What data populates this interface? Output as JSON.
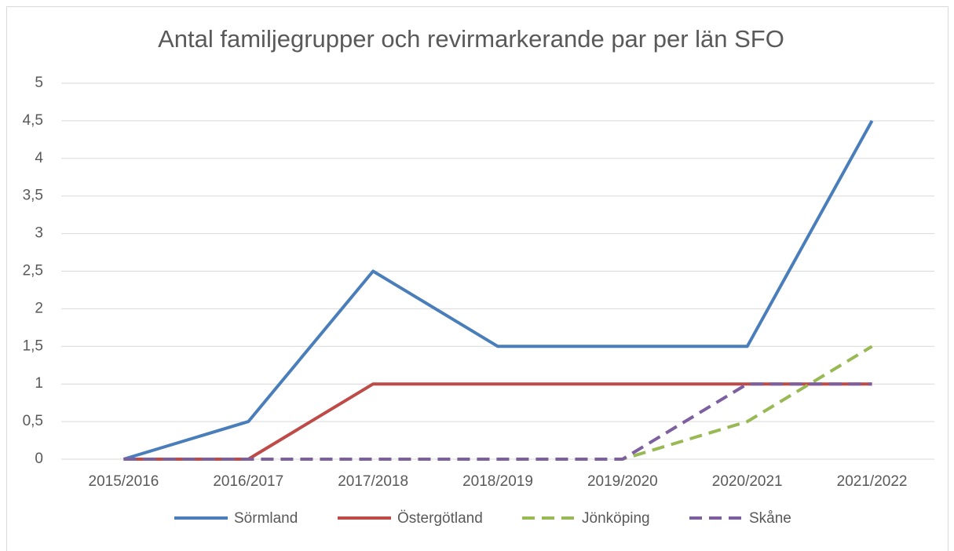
{
  "chart_data": {
    "type": "line",
    "title": "Antal familjegrupper och revirmarkerande par per län SFO",
    "categories": [
      "2015/2016",
      "2016/2017",
      "2017/2018",
      "2018/2019",
      "2019/2020",
      "2020/2021",
      "2021/2022"
    ],
    "series": [
      {
        "name": "Sörmland",
        "color": "#4a7ebb",
        "dashed": false,
        "values": [
          0,
          0.5,
          2.5,
          1.5,
          1.5,
          1.5,
          4.5
        ]
      },
      {
        "name": "Östergötland",
        "color": "#be4b48",
        "dashed": false,
        "values": [
          0,
          0,
          1,
          1,
          1,
          1,
          1
        ]
      },
      {
        "name": "Jönköping",
        "color": "#98b954",
        "dashed": true,
        "values": [
          0,
          0,
          0,
          0,
          0,
          0.5,
          1.5
        ]
      },
      {
        "name": "Skåne",
        "color": "#7d5fa0",
        "dashed": true,
        "values": [
          0,
          0,
          0,
          0,
          0,
          1,
          1
        ]
      }
    ],
    "ylim": [
      0,
      5
    ],
    "yticks": [
      0,
      {
        "value": 0.5,
        "label": "0,5"
      },
      1,
      {
        "value": 1.5,
        "label": "1,5"
      },
      2,
      {
        "value": 2.5,
        "label": "2,5"
      },
      3,
      {
        "value": 3.5,
        "label": "3,5"
      },
      4,
      {
        "value": 4.5,
        "label": "4,5"
      },
      5
    ],
    "grid": true,
    "legend": "bottom"
  }
}
